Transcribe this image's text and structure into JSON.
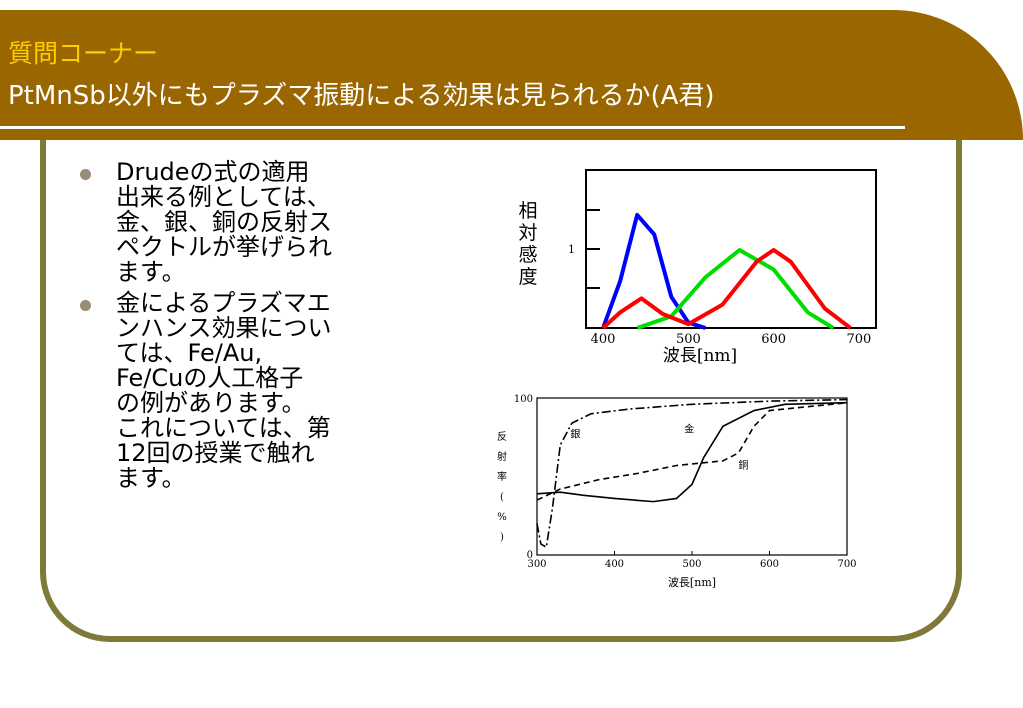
{
  "title": {
    "line1": "質問コーナー",
    "line2": "PtMnSb以外にもプラズマ振動による効果は見られるか(A君)"
  },
  "bullets": [
    {
      "text": "Drudeの式の適用\n出来る例としては、\n金、銀、銅の反射ス\nペクトルが挙げられ\nます。"
    },
    {
      "text": "金によるプラズマエ\nンハンス効果につい\nては、Fe/Au,\nFe/Cuの人工格子\nの例があります。\nこれについては、第\n12回の授業で触れ\nます。"
    }
  ],
  "colors": {
    "title_bar": "#9a6600",
    "title_line1": "#ffcc00",
    "frame": "#7f7a3a"
  },
  "chart_data": [
    {
      "type": "line",
      "ylabel": "相対感度",
      "xlabel": "波長[nm]",
      "xticks": [
        "400",
        "500",
        "600",
        "700"
      ],
      "yticks": [
        "1"
      ],
      "xlim": [
        380,
        720
      ],
      "series": [
        {
          "color": "#0000ff",
          "x": [
            400,
            420,
            440,
            460,
            480,
            500,
            520
          ],
          "y": [
            0.0,
            0.6,
            1.45,
            1.2,
            0.4,
            0.07,
            0.0
          ]
        },
        {
          "color": "#00dd00",
          "x": [
            440,
            480,
            520,
            560,
            600,
            640,
            670
          ],
          "y": [
            0.0,
            0.15,
            0.65,
            1.0,
            0.75,
            0.2,
            0.0
          ]
        },
        {
          "color": "#ff0000",
          "x": [
            400,
            420,
            445,
            470,
            500,
            540,
            580,
            600,
            620,
            660,
            690
          ],
          "y": [
            0.0,
            0.2,
            0.38,
            0.18,
            0.05,
            0.3,
            0.85,
            1.0,
            0.85,
            0.25,
            0.0
          ]
        }
      ]
    },
    {
      "type": "line",
      "ylabel": "反射率(%)",
      "xlabel": "波長[nm]",
      "xticks": [
        "300",
        "400",
        "500",
        "600",
        "700"
      ],
      "yticks": [
        "0",
        "100"
      ],
      "xlim": [
        300,
        700
      ],
      "ylim": [
        0,
        100
      ],
      "series": [
        {
          "name": "銀",
          "style": "dashdot",
          "x": [
            300,
            305,
            312,
            320,
            330,
            345,
            370,
            420,
            500,
            600,
            700
          ],
          "y": [
            20,
            7,
            5,
            30,
            70,
            84,
            90,
            93,
            96,
            98,
            99
          ]
        },
        {
          "name": "金",
          "style": "solid",
          "x": [
            300,
            330,
            360,
            400,
            450,
            480,
            500,
            515,
            540,
            580,
            620,
            700
          ],
          "y": [
            39,
            40,
            38,
            36,
            34,
            36,
            45,
            62,
            82,
            92,
            96,
            97
          ]
        },
        {
          "name": "銅",
          "style": "dashed",
          "x": [
            300,
            330,
            380,
            430,
            480,
            540,
            560,
            580,
            600,
            700
          ],
          "y": [
            35,
            42,
            48,
            52,
            57,
            60,
            65,
            82,
            92,
            97
          ]
        }
      ]
    }
  ]
}
